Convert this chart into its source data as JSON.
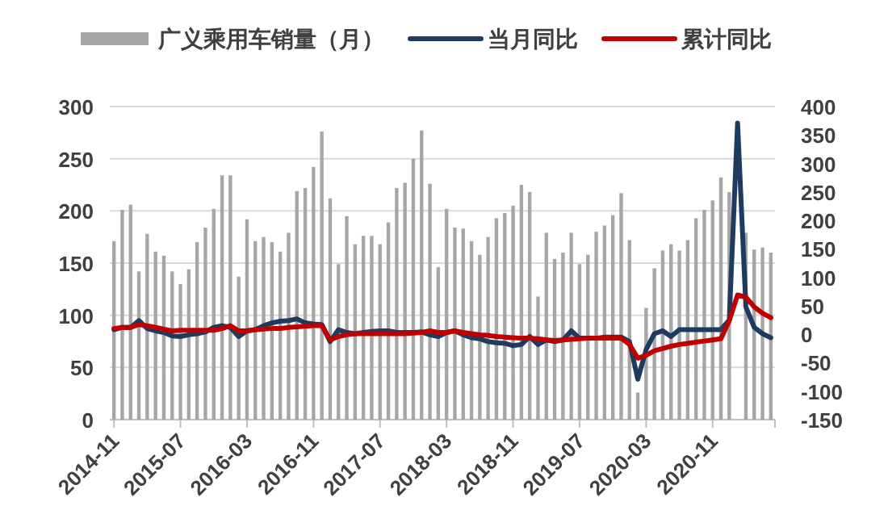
{
  "chart_data": {
    "type": "bar",
    "categories": [
      "2014-11",
      null,
      null,
      null,
      null,
      null,
      null,
      null,
      "2015-07",
      null,
      null,
      null,
      null,
      null,
      null,
      null,
      "2016-03",
      null,
      null,
      null,
      null,
      null,
      null,
      null,
      "2016-11",
      null,
      null,
      null,
      null,
      null,
      null,
      null,
      "2017-07",
      null,
      null,
      null,
      null,
      null,
      null,
      null,
      "2018-03",
      null,
      null,
      null,
      null,
      null,
      null,
      null,
      "2018-11",
      null,
      null,
      null,
      null,
      null,
      null,
      null,
      "2019-07",
      null,
      null,
      null,
      null,
      null,
      null,
      null,
      "2020-03",
      null,
      null,
      null,
      null,
      null,
      null,
      null,
      "2020-11",
      null,
      null,
      null,
      null,
      null,
      null,
      null
    ],
    "series": [
      {
        "name": "广义乘用车销量（月）",
        "color": "#a6a6a6",
        "values": [
          171,
          201,
          206,
          142,
          178,
          161,
          157,
          142,
          130,
          144,
          170,
          184,
          202,
          234,
          234,
          137,
          192,
          171,
          175,
          170,
          161,
          179,
          219,
          222,
          242,
          276,
          212,
          149,
          195,
          168,
          176,
          176,
          168,
          189,
          222,
          227,
          250,
          277,
          226,
          146,
          202,
          184,
          183,
          171,
          158,
          175,
          193,
          198,
          205,
          225,
          218,
          118,
          179,
          154,
          160,
          179,
          149,
          158,
          180,
          186,
          196,
          217,
          172,
          26,
          107,
          145,
          162,
          168,
          162,
          172,
          193,
          201,
          210,
          232,
          218,
          null,
          179,
          163,
          165,
          160
        ]
      },
      {
        "name": "当月同比",
        "type": "line",
        "axis": "y2",
        "color": "#1f3a5f",
        "values": [
          8,
          12,
          12,
          24,
          10,
          6,
          3,
          -3,
          -4,
          -1,
          1,
          4,
          12,
          15,
          12,
          -4,
          6,
          8,
          15,
          20,
          23,
          24,
          27,
          20,
          18,
          17,
          -13,
          8,
          3,
          1,
          3,
          5,
          6,
          6,
          3,
          3,
          3,
          4,
          -1,
          -4,
          3,
          6,
          -1,
          -6,
          -8,
          -13,
          -15,
          -16,
          -20,
          -18,
          -4,
          -18,
          -10,
          -13,
          -10,
          6,
          -7,
          -7,
          -7,
          -5,
          -5,
          -5,
          -13,
          -79,
          -27,
          1,
          6,
          -4,
          8,
          8,
          8,
          8,
          8,
          8,
          25,
          371,
          48,
          12,
          1,
          -6
        ]
      },
      {
        "name": "累计同比",
        "type": "line",
        "axis": "y2",
        "color": "#c00000",
        "values": [
          10,
          12,
          12,
          17,
          15,
          12,
          9,
          6,
          7,
          7,
          7,
          7,
          7,
          10,
          15,
          6,
          6,
          8,
          9,
          10,
          10,
          12,
          13,
          14,
          15,
          15,
          -10,
          -4,
          -1,
          1,
          1,
          1,
          1,
          1,
          1,
          1,
          2,
          3,
          6,
          3,
          3,
          6,
          3,
          1,
          -1,
          -2,
          -4,
          -5,
          -6,
          -7,
          -7,
          -8,
          -10,
          -11,
          -10,
          -9,
          -8,
          -7,
          -7,
          -7,
          -7,
          -7,
          -18,
          -42,
          -37,
          -29,
          -25,
          -21,
          -18,
          -16,
          -14,
          -12,
          -10,
          -8,
          24,
          69,
          65,
          48,
          37,
          29
        ]
      }
    ],
    "ylim": [
      0,
      300
    ],
    "yticks": [
      0,
      50,
      100,
      150,
      200,
      250,
      300
    ],
    "y2lim": [
      -150,
      400
    ],
    "y2ticks": [
      -150,
      -100,
      -50,
      0,
      50,
      100,
      150,
      200,
      250,
      300,
      350,
      400
    ],
    "grid": "y",
    "legend": "top"
  }
}
